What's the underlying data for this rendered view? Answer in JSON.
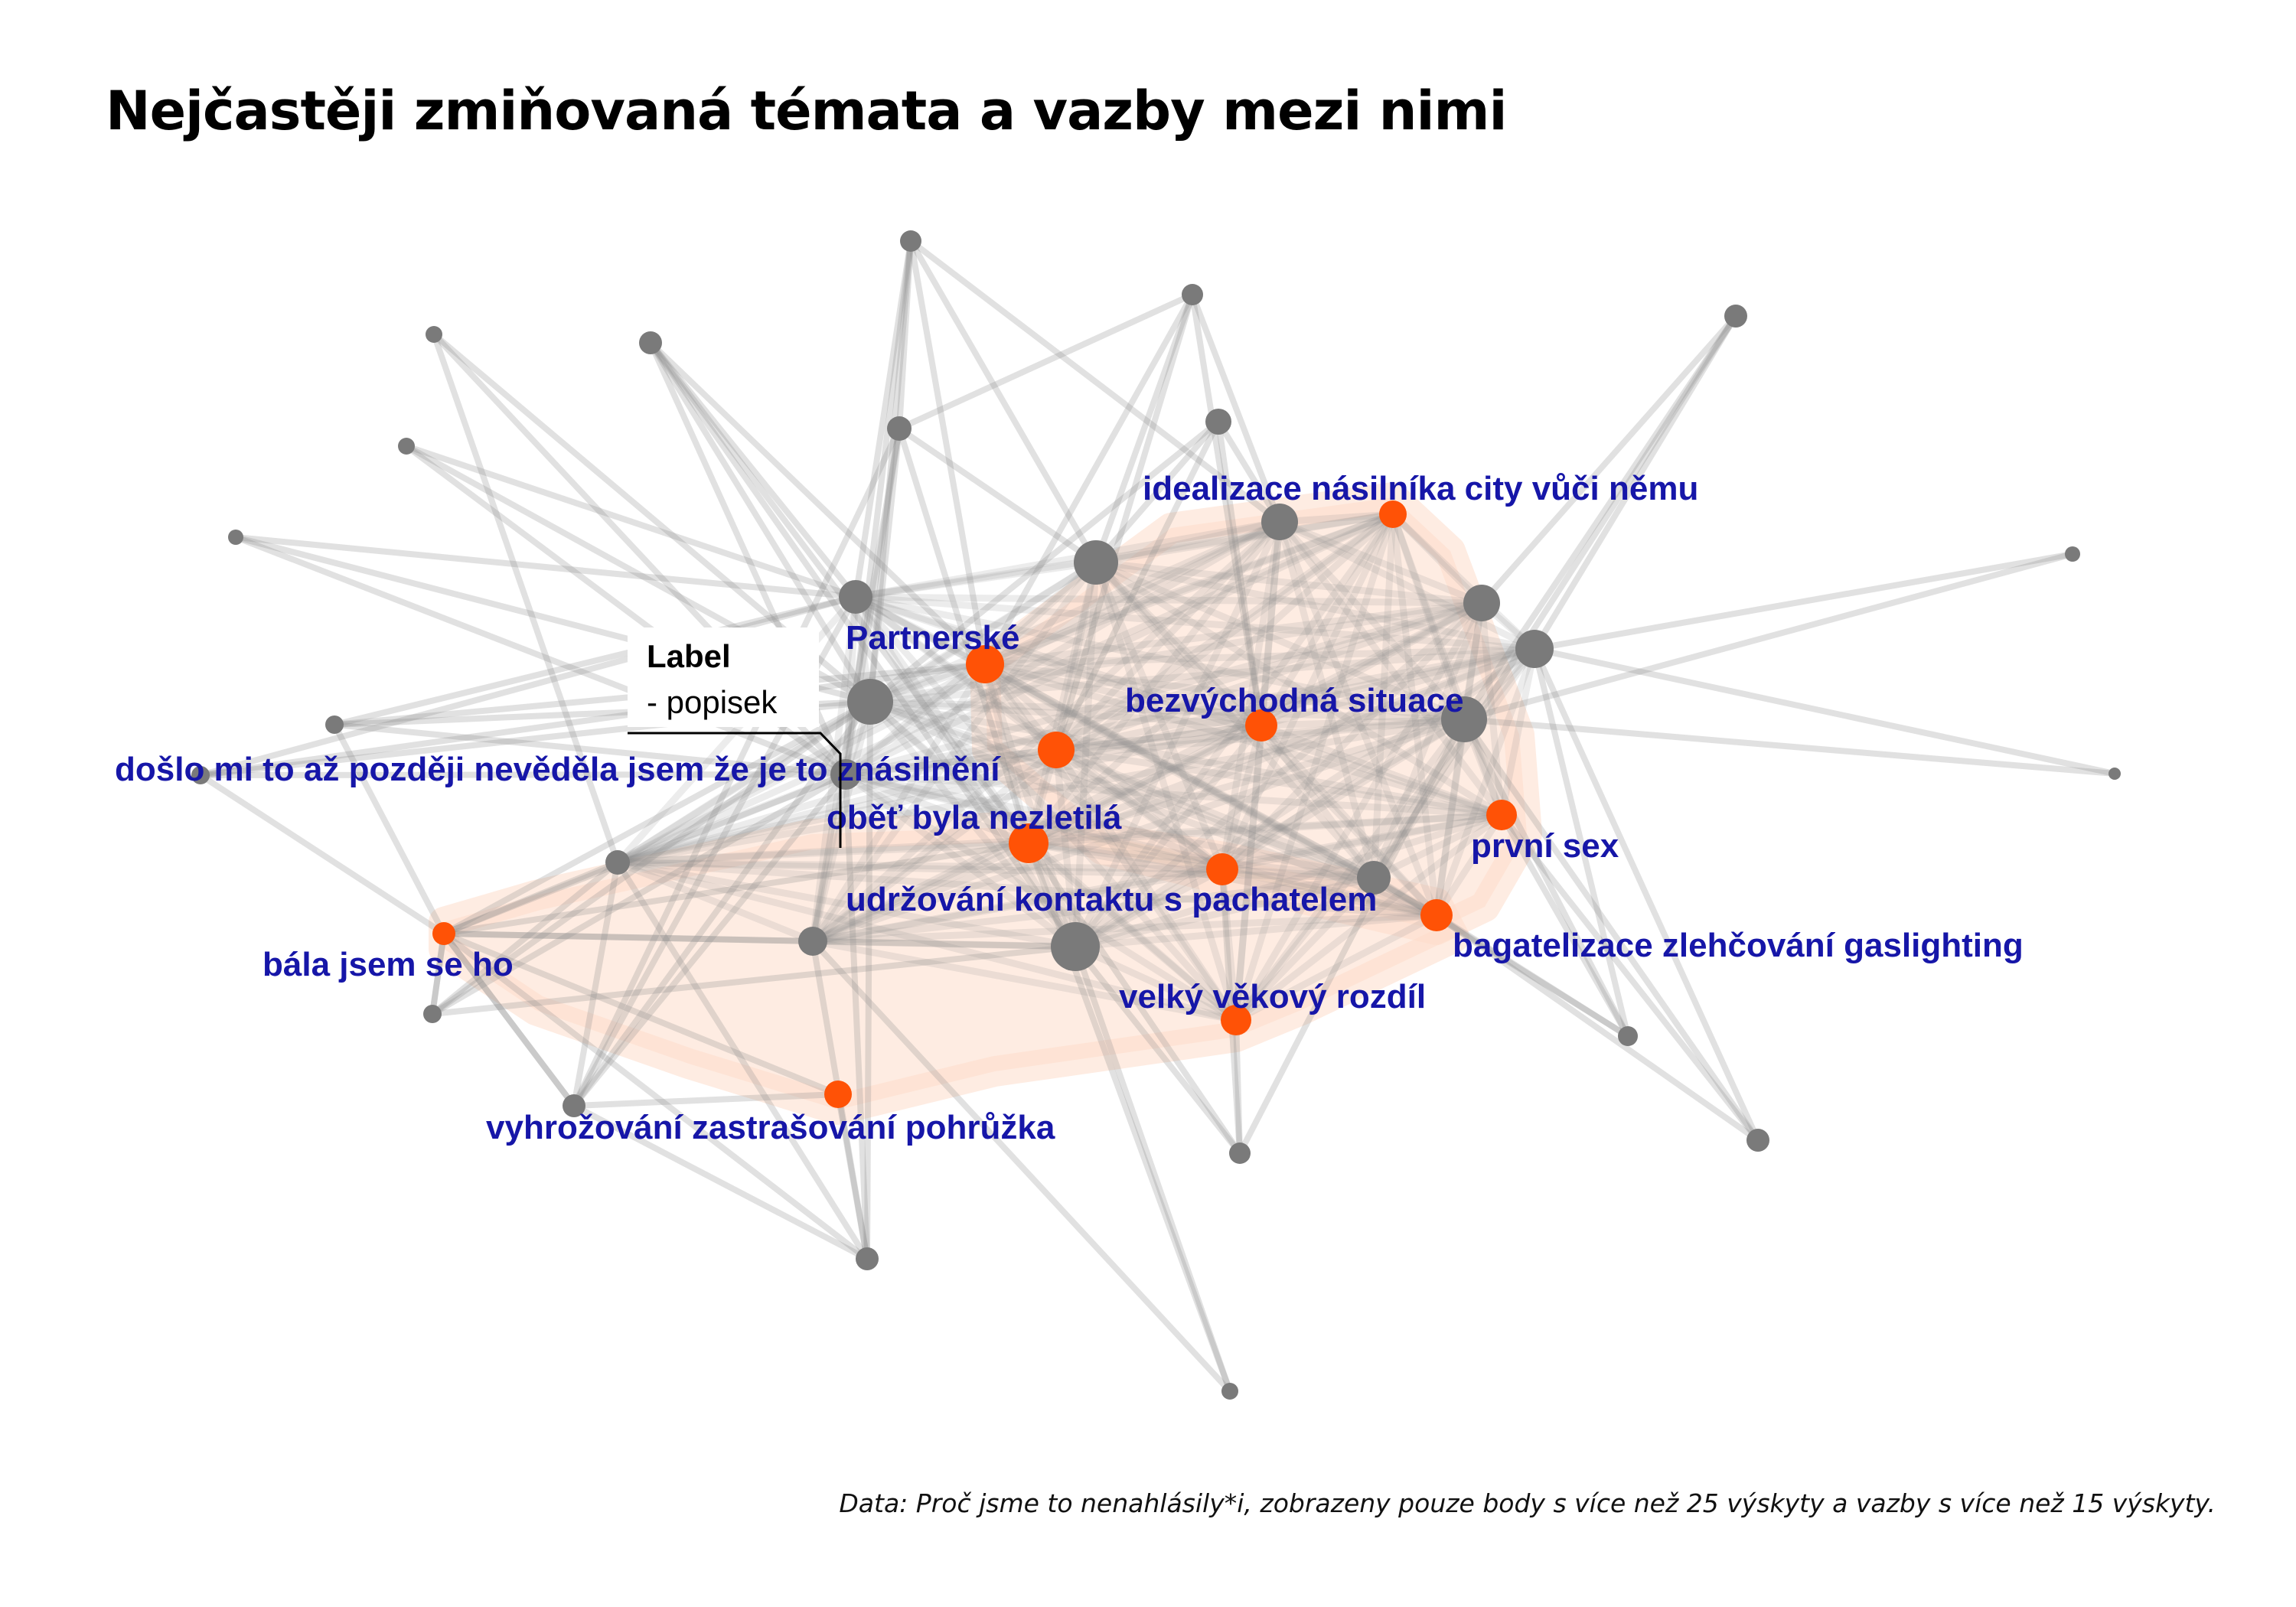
{
  "title": "Nejčastěji zmiňovaná témata a vazby mezi nimi",
  "source_note": "Data: Proč jsme to nenahlásily*i, zobrazeny pouze body s více než 25 výskyty a vazby s více než 15 výskyty.",
  "legend": {
    "title": "Label",
    "subtitle": "- popisek"
  },
  "colors": {
    "highlight_node": "#ff5206",
    "other_node": "#7a7a7a",
    "edge": "#8c8c8c",
    "hull": "#fddccb",
    "label": "#1616a8"
  },
  "labels": [
    "idealizace násilníka city vůči němu",
    "Partnerské",
    "bezvýchodná situace",
    "došlo mi to až později nevěděla jsem že je to znásilnění",
    "oběť byla nezletilá",
    "první sex",
    "udržování kontaktu s pachatelem",
    "bagatelizace zlehčování gaslighting",
    "bála jsem se ho",
    "velký věkový rozdíl",
    "vyhrožování zastrašování pohrůžka"
  ]
}
